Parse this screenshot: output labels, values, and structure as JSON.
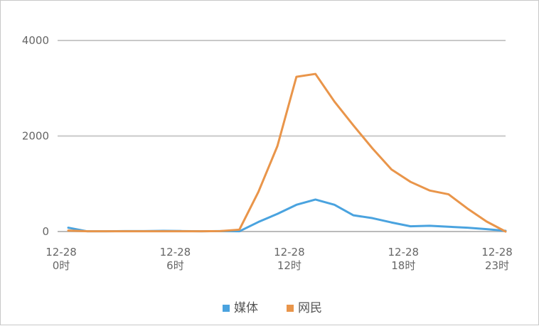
{
  "chart_data": {
    "type": "line",
    "x_tick_labels": [
      {
        "date": "12-28",
        "hour": "0时"
      },
      {
        "date": "12-28",
        "hour": "6时"
      },
      {
        "date": "12-28",
        "hour": "12时"
      },
      {
        "date": "12-28",
        "hour": "18时"
      },
      {
        "date": "12-28",
        "hour": "23时"
      }
    ],
    "x_tick_hours": [
      0,
      6,
      12,
      18,
      23
    ],
    "x": [
      0,
      1,
      2,
      3,
      4,
      5,
      6,
      7,
      8,
      9,
      10,
      11,
      12,
      13,
      14,
      15,
      16,
      17,
      18,
      19,
      20,
      21,
      22,
      23
    ],
    "y_ticks": [
      "0",
      "2000",
      "4000"
    ],
    "ylim": [
      0,
      4000
    ],
    "grid": true,
    "legend_position": "bottom-center",
    "series": [
      {
        "name": "媒体",
        "color": "#4aa3df",
        "values": [
          80,
          5,
          5,
          10,
          10,
          15,
          10,
          5,
          10,
          5,
          200,
          370,
          560,
          670,
          560,
          340,
          280,
          190,
          110,
          120,
          100,
          80,
          50,
          15
        ]
      },
      {
        "name": "网民",
        "color": "#e9954a",
        "values": [
          20,
          5,
          5,
          5,
          5,
          5,
          5,
          5,
          10,
          40,
          830,
          1790,
          3240,
          3300,
          2720,
          2220,
          1740,
          1300,
          1040,
          860,
          780,
          480,
          210,
          0
        ]
      }
    ]
  }
}
